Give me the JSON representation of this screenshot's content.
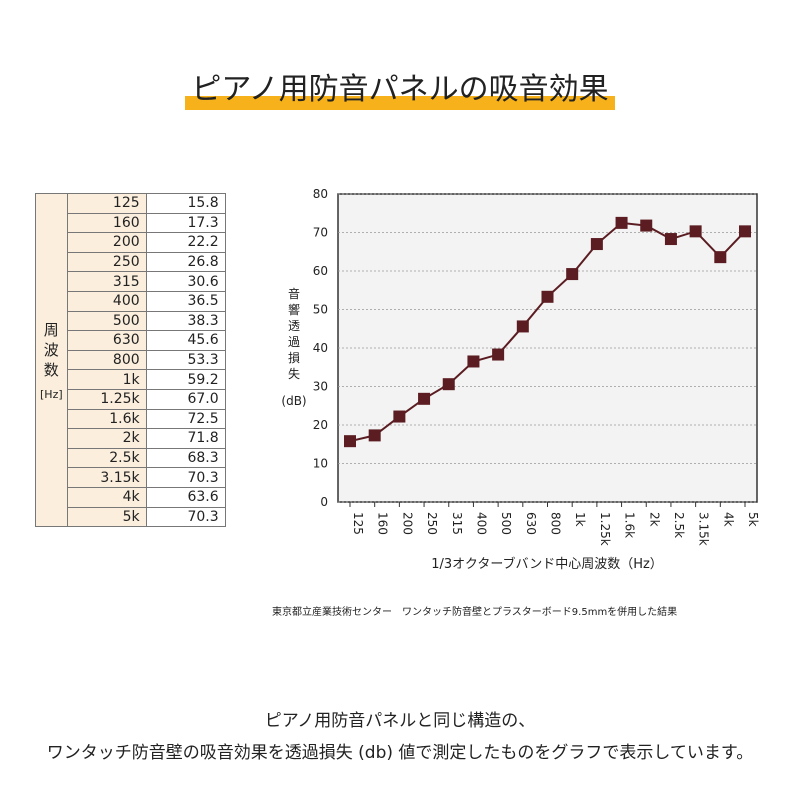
{
  "header": {
    "title": "ピアノ用防音パネルの吸音効果"
  },
  "table": {
    "header": "周波数",
    "unit": "[Hz]"
  },
  "chart_data": {
    "type": "line",
    "y_label": "音響透過損失",
    "y_unit": "(dB)",
    "x_label": "1/3オクターブバンド中心周波数（Hz）",
    "categories": [
      "125",
      "160",
      "200",
      "250",
      "315",
      "400",
      "500",
      "630",
      "800",
      "1k",
      "1.25k",
      "1.6k",
      "2k",
      "2.5k",
      "3.15k",
      "4k",
      "5k"
    ],
    "values": [
      15.8,
      17.3,
      22.2,
      26.8,
      30.6,
      36.5,
      38.3,
      45.6,
      53.3,
      59.2,
      67.0,
      72.5,
      71.8,
      68.3,
      70.3,
      63.6,
      70.3
    ],
    "value_labels": [
      "15.8",
      "17.3",
      "22.2",
      "26.8",
      "30.6",
      "36.5",
      "38.3",
      "45.6",
      "53.3",
      "59.2",
      "67.0",
      "72.5",
      "71.8",
      "68.3",
      "70.3",
      "63.6",
      "70.3"
    ],
    "color": "#5b1d22",
    "ylim": [
      0,
      80
    ],
    "yticks": [
      0,
      10,
      20,
      30,
      40,
      50,
      60,
      70,
      80
    ],
    "grid": true
  },
  "source_note": "東京都立産業技術センター　ワンタッチ防音壁とプラスターボード9.5mmを併用した結果",
  "caption": [
    "ピアノ用防音パネルと同じ構造の、",
    "ワンタッチ防音壁の吸音効果を透過損失 (db) 値で測定したものをグラフで表示しています。"
  ]
}
